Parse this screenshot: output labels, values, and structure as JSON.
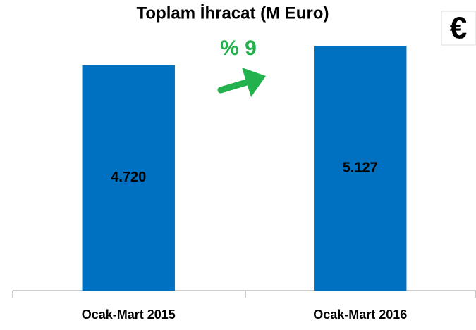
{
  "chart_data": {
    "type": "bar",
    "title": "Toplam İhracat (M Euro)",
    "categories": [
      "Ocak-Mart 2015",
      "Ocak-Mart 2016"
    ],
    "values": [
      4720,
      5127
    ],
    "value_labels": [
      "4.720",
      "5.127"
    ],
    "color": "#0070c0",
    "ylim": [
      0,
      5500
    ],
    "annotations": [
      "% 9",
      "€"
    ]
  }
}
